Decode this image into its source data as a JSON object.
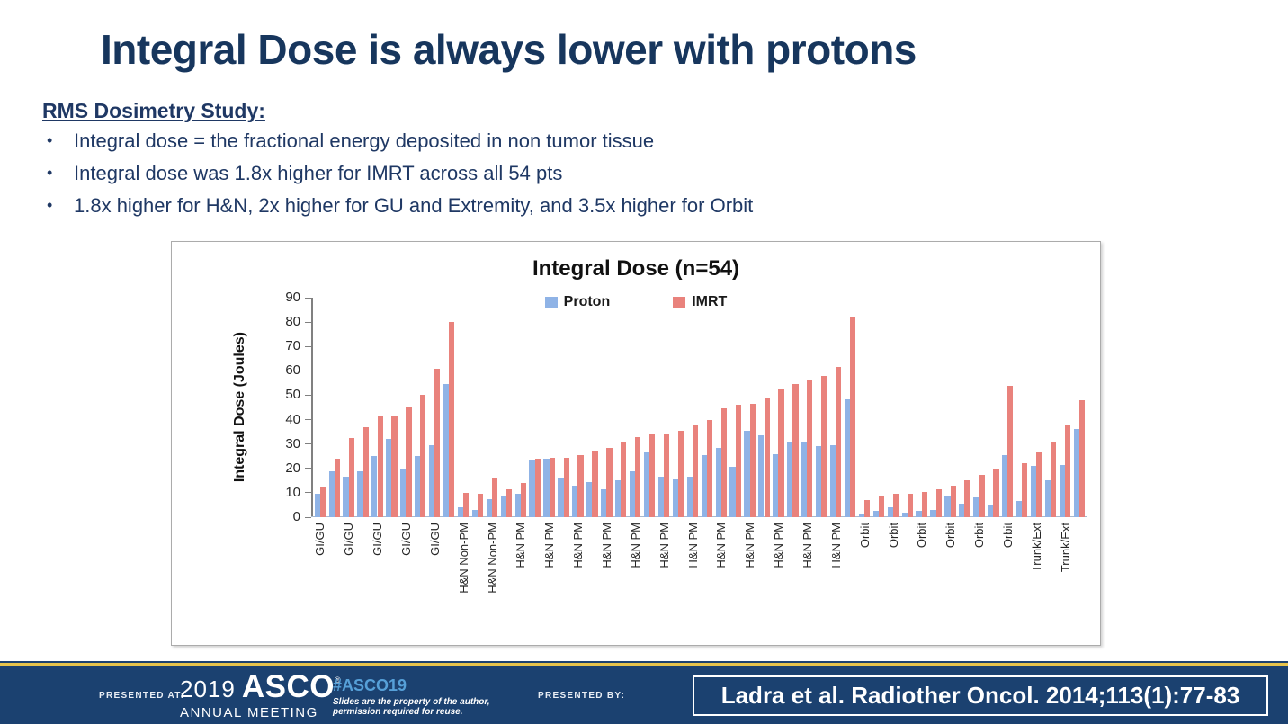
{
  "slide": {
    "title": "Integral Dose is always lower with protons",
    "heading": "RMS Dosimetry Study:",
    "bullet_marker": "•",
    "bullets": [
      "Integral dose = the fractional energy deposited in non tumor tissue",
      "Integral dose was 1.8x higher for IMRT across all 54 pts",
      "1.8x higher for H&N, 2x higher for GU and Extremity, and 3.5x higher for Orbit"
    ]
  },
  "chart_data": {
    "type": "bar",
    "title": "Integral Dose (n=54)",
    "ylabel": "Integral Dose (Joules)",
    "xlabel": "",
    "ylim": [
      0,
      90
    ],
    "ytick_step": 10,
    "grid": false,
    "legend_position": "top",
    "label_every": 2,
    "categories": [
      "GI/GU",
      "GI/GU",
      "GI/GU",
      "GI/GU",
      "GI/GU",
      "GI/GU",
      "GI/GU",
      "GI/GU",
      "GI/GU",
      "GI/GU",
      "H&N Non-PM",
      "H&N Non-PM",
      "H&N Non-PM",
      "H&N Non-PM",
      "H&N PM",
      "H&N PM",
      "H&N PM",
      "H&N PM",
      "H&N PM",
      "H&N PM",
      "H&N PM",
      "H&N PM",
      "H&N PM",
      "H&N PM",
      "H&N PM",
      "H&N PM",
      "H&N PM",
      "H&N PM",
      "H&N PM",
      "H&N PM",
      "H&N PM",
      "H&N PM",
      "H&N PM",
      "H&N PM",
      "H&N PM",
      "H&N PM",
      "H&N PM",
      "H&N PM",
      "Orbit",
      "Orbit",
      "Orbit",
      "Orbit",
      "Orbit",
      "Orbit",
      "Orbit",
      "Orbit",
      "Orbit",
      "Orbit",
      "Orbit",
      "Orbit",
      "Trunk/Ext",
      "Trunk/Ext",
      "Trunk/Ext",
      "Trunk/Ext"
    ],
    "series": [
      {
        "name": "Proton",
        "color": "#8fb3e6",
        "values": [
          9.5,
          19,
          16.5,
          19,
          25,
          32,
          19.5,
          25,
          29.5,
          54.5,
          4,
          3,
          7.5,
          8.5,
          9.5,
          23.5,
          24,
          16,
          13,
          14.5,
          11.5,
          15,
          19,
          26.5,
          16.5,
          15.5,
          16.5,
          25.5,
          28.5,
          20.5,
          35.5,
          33.5,
          26,
          30.5,
          31,
          29,
          29.5,
          48.5,
          1.5,
          2.5,
          4,
          2,
          2.5,
          3,
          9,
          5.5,
          8,
          5,
          25.5,
          6.5,
          21,
          15,
          21.5,
          36
        ]
      },
      {
        "name": "IMRT",
        "color": "#e9827c",
        "values": [
          12.5,
          24,
          32.5,
          37,
          41.5,
          41.5,
          45,
          50,
          61,
          80,
          10,
          9.5,
          16,
          11.5,
          14,
          24,
          24.5,
          24.5,
          25.5,
          27,
          28.5,
          31,
          33,
          34,
          34,
          35.5,
          38,
          40,
          44.5,
          46,
          46.5,
          49,
          52.5,
          54.5,
          56,
          58,
          61.5,
          82,
          7,
          9,
          9.5,
          9.5,
          10.5,
          11.5,
          13,
          15,
          17.5,
          19.5,
          54,
          22,
          26.5,
          31,
          38,
          48
        ]
      }
    ]
  },
  "footer": {
    "presented_at_label": "PRESENTED AT:",
    "logo_year": "2019",
    "logo_name": "ASCO",
    "logo_reg": "®",
    "logo_subtitle": "ANNUAL MEETING",
    "hashtag": "#ASCO19",
    "disclaimer_line1": "Slides are the property of the author,",
    "disclaimer_line2": "permission required for reuse.",
    "presented_by_label": "PRESENTED BY:",
    "citation": "Ladra et al. Radiother Oncol. 2014;113(1):77-83"
  },
  "colors": {
    "title_navy": "#17365d",
    "body_navy": "#1f3864",
    "footer_navy": "#1b4170",
    "footer_gold": "#e6c34c",
    "hashtag_blue": "#56a0d8",
    "proton_bar": "#8fb3e6",
    "imrt_bar": "#e9827c",
    "axis_gray": "#808080"
  }
}
